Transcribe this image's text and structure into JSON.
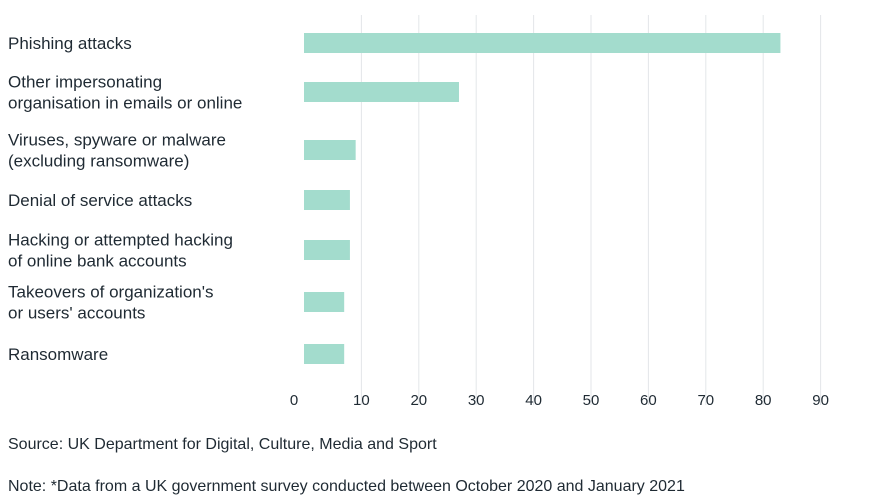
{
  "chart_data": {
    "type": "bar",
    "orientation": "horizontal",
    "categories": [
      [
        "Phishing attacks"
      ],
      [
        "Other impersonating",
        "organisation in emails or online"
      ],
      [
        "Viruses, spyware or malware",
        "(excluding ransomware)"
      ],
      [
        "Denial of service attacks"
      ],
      [
        "Hacking or attempted hacking",
        "of online bank accounts"
      ],
      [
        "Takeovers of organization's",
        "or users' accounts"
      ],
      [
        "Ransomware"
      ]
    ],
    "values": [
      83,
      27,
      9,
      8,
      8,
      7,
      7
    ],
    "xticks": [
      "0",
      "10",
      "20",
      "30",
      "40",
      "50",
      "60",
      "70",
      "80",
      "90"
    ],
    "xlim": [
      0,
      90
    ],
    "grid": "vertical",
    "bar_color": "#a3dccd",
    "gridline_color": "#e3e6e9",
    "title": "",
    "xlabel": "",
    "ylabel": ""
  },
  "footer": {
    "source": "Source: UK Department for Digital, Culture, Media and Sport",
    "note": "Note: *Data from a UK government survey conducted between October 2020 and January 2021"
  }
}
